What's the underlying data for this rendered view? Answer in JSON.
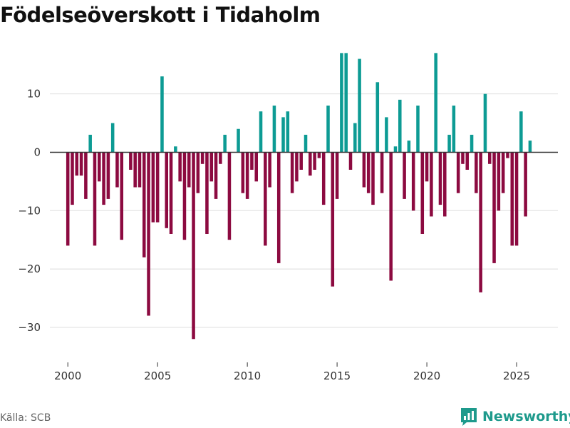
{
  "chart_data": {
    "type": "bar",
    "title": "Födelseöverskott i Tidaholm",
    "xlabel": "",
    "ylabel": "",
    "xlim": [
      1999.0,
      2027.3
    ],
    "ylim": [
      -36,
      19
    ],
    "yticks": [
      10,
      0,
      -10,
      -20,
      -30
    ],
    "ytick_labels": [
      "10",
      "0",
      "−10",
      "−20",
      "−30"
    ],
    "xticks": [
      2000,
      2005,
      2010,
      2015,
      2020,
      2025
    ],
    "xtick_labels": [
      "2000",
      "2005",
      "2010",
      "2015",
      "2020",
      "2025"
    ],
    "bar_period": "quarter",
    "positive_color": "#0d9b94",
    "negative_color": "#8c0a40",
    "x": [
      2000.0,
      2000.25,
      2000.5,
      2000.75,
      2001.0,
      2001.25,
      2001.5,
      2001.75,
      2002.0,
      2002.25,
      2002.5,
      2002.75,
      2003.0,
      2003.25,
      2003.5,
      2003.75,
      2004.0,
      2004.25,
      2004.5,
      2004.75,
      2005.0,
      2005.25,
      2005.5,
      2005.75,
      2006.0,
      2006.25,
      2006.5,
      2006.75,
      2007.0,
      2007.25,
      2007.5,
      2007.75,
      2008.0,
      2008.25,
      2008.5,
      2008.75,
      2009.0,
      2009.25,
      2009.5,
      2009.75,
      2010.0,
      2010.25,
      2010.5,
      2010.75,
      2011.0,
      2011.25,
      2011.5,
      2011.75,
      2012.0,
      2012.25,
      2012.5,
      2012.75,
      2013.0,
      2013.25,
      2013.5,
      2013.75,
      2014.0,
      2014.25,
      2014.5,
      2014.75,
      2015.0,
      2015.25,
      2015.5,
      2015.75,
      2016.0,
      2016.25,
      2016.5,
      2016.75,
      2017.0,
      2017.25,
      2017.5,
      2017.75,
      2018.0,
      2018.25,
      2018.5,
      2018.75,
      2019.0,
      2019.25,
      2019.5,
      2019.75,
      2020.0,
      2020.25,
      2020.5,
      2020.75,
      2021.0,
      2021.25,
      2021.5,
      2021.75,
      2022.0,
      2022.25,
      2022.5,
      2022.75,
      2023.0,
      2023.25,
      2023.5,
      2023.75,
      2024.0,
      2024.25,
      2024.5,
      2024.75,
      2025.0,
      2025.25,
      2025.5,
      2025.75
    ],
    "values": [
      -16,
      -9,
      -4,
      -4,
      -8,
      3,
      -16,
      -5,
      -9,
      -8,
      5,
      -6,
      -15,
      0,
      -3,
      -6,
      -6,
      -18,
      -28,
      -12,
      -12,
      13,
      -13,
      -14,
      1,
      -5,
      -15,
      -6,
      -32,
      -7,
      -2,
      -14,
      -5,
      -8,
      -2,
      3,
      -15,
      0,
      4,
      -7,
      -8,
      -3,
      -5,
      7,
      -16,
      -6,
      8,
      -19,
      6,
      7,
      -7,
      -5,
      -3,
      3,
      -4,
      -3,
      -1,
      -9,
      8,
      -23,
      -8,
      17,
      17,
      -3,
      5,
      16,
      -6,
      -7,
      -9,
      12,
      -7,
      6,
      -22,
      1,
      9,
      -8,
      2,
      -10,
      8,
      -14,
      -5,
      -11,
      17,
      -9,
      -11,
      3,
      8,
      -7,
      -2,
      -3,
      3,
      -7,
      -24,
      10,
      -2,
      -19,
      -10,
      -7,
      -1,
      -16,
      -16,
      7,
      -11,
      2
    ]
  },
  "footer": {
    "source": "Källa: SCB",
    "brand": "Newsworthy",
    "brand_color": "#1e9a8c"
  }
}
